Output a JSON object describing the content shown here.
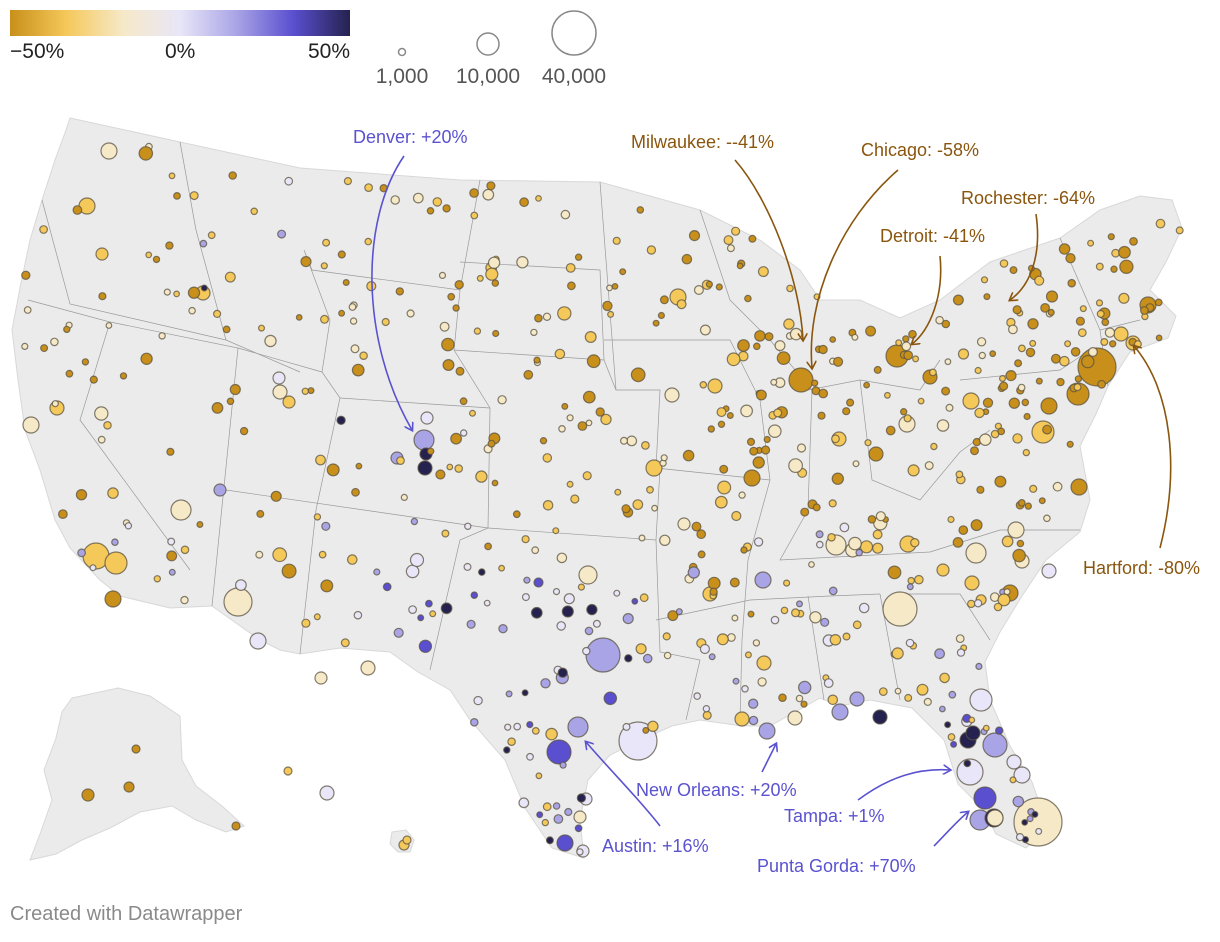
{
  "legend": {
    "color_labels": [
      "−50%",
      "0%",
      "50%"
    ],
    "colors": [
      "#c8901a",
      "#f5c85a",
      "#f6e9c8",
      "#e8e6f8",
      "#a9a4e6",
      "#5a4fcf",
      "#25224f"
    ],
    "size_labels": [
      "1,000",
      "10,000",
      "40,000"
    ]
  },
  "annotations": [
    {
      "text": "Denver: +20%",
      "tone": "purple"
    },
    {
      "text": "Milwaukee: --41%",
      "tone": "brown"
    },
    {
      "text": "Chicago: -58%",
      "tone": "brown"
    },
    {
      "text": "Rochester: -64%",
      "tone": "brown"
    },
    {
      "text": "Detroit: -41%",
      "tone": "brown"
    },
    {
      "text": "Hartford: -80%",
      "tone": "brown"
    },
    {
      "text": "New Orleans: +20%",
      "tone": "purple"
    },
    {
      "text": "Austin: +16%",
      "tone": "purple"
    },
    {
      "text": "Tampa: +1%",
      "tone": "purple"
    },
    {
      "text": "Punta Gorda: +70%",
      "tone": "purple"
    }
  ],
  "tone_colors": {
    "brown": "#8a560e",
    "purple": "#5a52cf"
  },
  "map_colors": {
    "land": "#ebebeb",
    "borders": "#9a9a9a"
  },
  "credit": "Created with Datawrapper"
}
